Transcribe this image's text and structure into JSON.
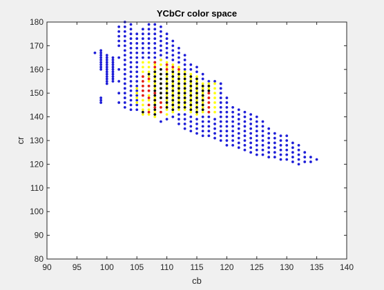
{
  "chart_data": {
    "type": "scatter",
    "title": "YCbCr color space",
    "xlabel": "cb",
    "ylabel": "cr",
    "xlim": [
      90,
      140
    ],
    "ylim": [
      80,
      180
    ],
    "xticks": [
      90,
      95,
      100,
      105,
      110,
      115,
      120,
      125,
      130,
      135,
      140
    ],
    "yticks": [
      80,
      90,
      100,
      110,
      120,
      130,
      140,
      150,
      160,
      170,
      180
    ],
    "grid": false,
    "legend": "none",
    "colors": {
      "background": "#f0f0f0",
      "axes_face": "#ffffff",
      "axes_edge": "#262626",
      "blue": "#1f1fd8",
      "yellow": "#ffff14",
      "red": "#e31a1c",
      "black": "#111111"
    },
    "series": [
      {
        "color": "blue",
        "columns": [
          {
            "x": 98,
            "y": [
              167
            ]
          },
          {
            "x": 99,
            "y": [
              146,
              147,
              148,
              160,
              161,
              162,
              163,
              164,
              165,
              166,
              167,
              168
            ]
          },
          {
            "x": 100,
            "y": [
              154,
              155,
              156,
              157,
              158,
              159,
              160,
              161,
              162,
              163,
              164,
              165,
              166
            ]
          },
          {
            "x": 101,
            "y": [
              155,
              156,
              157,
              158,
              159,
              160,
              161,
              162,
              163,
              164,
              165
            ]
          },
          {
            "x": 102,
            "y": [
              146,
              150,
              155,
              160,
              165,
              170,
              172,
              174,
              176,
              178
            ]
          },
          {
            "x": 103,
            "y": [
              144,
              146,
              148,
              150,
              152,
              154,
              156,
              158,
              160,
              162,
              164,
              166,
              168,
              170,
              172,
              174,
              176,
              178,
              180
            ]
          },
          {
            "x": 104,
            "y": [
              143,
              145,
              147,
              149,
              151,
              153,
              155,
              157,
              159,
              161,
              163,
              165,
              167,
              169,
              171,
              173,
              175,
              177,
              179
            ]
          },
          {
            "x": 105,
            "y": [
              143,
              145,
              147,
              149,
              151,
              153,
              155,
              157,
              159,
              161,
              163,
              165,
              167,
              169,
              171,
              173,
              175
            ]
          },
          {
            "x": 106,
            "y": [
              165,
              167,
              169,
              171,
              173,
              175,
              177
            ]
          },
          {
            "x": 107,
            "y": [
              165,
              167,
              169,
              171,
              173,
              175,
              177,
              179
            ]
          },
          {
            "x": 108,
            "y": [
              163,
              165,
              167,
              169,
              171,
              173,
              175,
              177,
              179
            ]
          },
          {
            "x": 109,
            "y": [
              138,
              164,
              166,
              168,
              170,
              172,
              174,
              176,
              178
            ]
          },
          {
            "x": 110,
            "y": [
              139,
              165,
              167,
              169,
              171,
              173,
              175
            ]
          },
          {
            "x": 111,
            "y": [
              140,
              164,
              166,
              168,
              170,
              172
            ]
          },
          {
            "x": 112,
            "y": [
              137,
              139,
              141,
              163,
              165,
              167,
              169
            ]
          },
          {
            "x": 113,
            "y": [
              135,
              137,
              139,
              141,
              160,
              162,
              164,
              166
            ]
          },
          {
            "x": 114,
            "y": [
              134,
              136,
              138,
              140,
              160,
              162
            ]
          },
          {
            "x": 115,
            "y": [
              133,
              135,
              137,
              139,
              159,
              161
            ]
          },
          {
            "x": 116,
            "y": [
              132,
              134,
              136,
              138,
              140,
              156,
              158
            ]
          },
          {
            "x": 117,
            "y": [
              132,
              134,
              136,
              138,
              140,
              155
            ]
          },
          {
            "x": 118,
            "y": [
              131,
              133,
              135,
              137,
              139,
              155
            ]
          },
          {
            "x": 119,
            "y": [
              130,
              132,
              134,
              136,
              138,
              140,
              142,
              144,
              146,
              148,
              150,
              152,
              154
            ]
          },
          {
            "x": 120,
            "y": [
              128,
              130,
              132,
              134,
              136,
              138,
              140,
              142,
              144,
              146,
              148
            ]
          },
          {
            "x": 121,
            "y": [
              128,
              130,
              132,
              134,
              136,
              138,
              140,
              142,
              144
            ]
          },
          {
            "x": 122,
            "y": [
              127,
              129,
              131,
              133,
              135,
              137,
              139,
              141,
              143
            ]
          },
          {
            "x": 123,
            "y": [
              126,
              128,
              130,
              132,
              134,
              136,
              138,
              140,
              142
            ]
          },
          {
            "x": 124,
            "y": [
              125,
              127,
              129,
              131,
              133,
              135,
              137,
              139,
              141
            ]
          },
          {
            "x": 125,
            "y": [
              124,
              126,
              128,
              130,
              132,
              134,
              136,
              138,
              140
            ]
          },
          {
            "x": 126,
            "y": [
              124,
              126,
              128,
              130,
              132,
              134,
              136,
              138
            ]
          },
          {
            "x": 127,
            "y": [
              123,
              125,
              127,
              129,
              131,
              133,
              135
            ]
          },
          {
            "x": 128,
            "y": [
              123,
              125,
              127,
              129,
              131,
              133
            ]
          },
          {
            "x": 129,
            "y": [
              122,
              124,
              126,
              128,
              130,
              132
            ]
          },
          {
            "x": 130,
            "y": [
              122,
              124,
              126,
              128,
              130,
              132
            ]
          },
          {
            "x": 131,
            "y": [
              121,
              123,
              125,
              127,
              129
            ]
          },
          {
            "x": 132,
            "y": [
              120,
              122,
              124,
              126,
              128
            ]
          },
          {
            "x": 133,
            "y": [
              121,
              123,
              125
            ]
          },
          {
            "x": 134,
            "y": [
              121,
              123
            ]
          },
          {
            "x": 135,
            "y": [
              122
            ]
          }
        ]
      },
      {
        "color": "yellow",
        "columns": [
          {
            "x": 105,
            "y": [
              146,
              148,
              150,
              152
            ]
          },
          {
            "x": 106,
            "y": [
              141,
              143,
              145,
              147,
              149,
              151,
              153,
              155,
              157,
              159,
              161,
              163
            ]
          },
          {
            "x": 107,
            "y": [
              141,
              143,
              145,
              147,
              149,
              151,
              153,
              155,
              157,
              159,
              161,
              163
            ]
          },
          {
            "x": 108,
            "y": [
              140,
              142,
              144,
              146,
              148,
              150,
              152,
              154,
              156,
              158,
              160,
              162
            ]
          },
          {
            "x": 109,
            "y": [
              142,
              144,
              146,
              148,
              150,
              152,
              154,
              156,
              158,
              160,
              162,
              164
            ]
          },
          {
            "x": 110,
            "y": [
              141,
              143,
              145,
              147,
              149,
              151,
              153,
              155,
              157,
              159,
              161,
              163
            ]
          },
          {
            "x": 111,
            "y": [
              142,
              144,
              146,
              148,
              150,
              152,
              154,
              156,
              158,
              160,
              162
            ]
          },
          {
            "x": 112,
            "y": [
              143,
              145,
              147,
              149,
              151,
              153,
              155,
              157,
              159,
              161
            ]
          },
          {
            "x": 113,
            "y": [
              143,
              145,
              147,
              149,
              151,
              153,
              155,
              157,
              159
            ]
          },
          {
            "x": 114,
            "y": [
              142,
              144,
              146,
              148,
              150,
              152,
              154,
              156,
              158
            ]
          },
          {
            "x": 115,
            "y": [
              141,
              143,
              145,
              147,
              149,
              151,
              153,
              155,
              157
            ]
          },
          {
            "x": 116,
            "y": [
              142,
              144,
              146,
              148,
              150,
              152,
              154
            ]
          },
          {
            "x": 117,
            "y": [
              142,
              144,
              146,
              148,
              150,
              152,
              154
            ]
          },
          {
            "x": 118,
            "y": [
              142,
              144,
              146,
              148,
              150,
              152,
              154
            ]
          }
        ]
      },
      {
        "color": "red",
        "columns": [
          {
            "x": 106,
            "y": [
              149,
              151,
              153,
              155,
              157
            ]
          },
          {
            "x": 107,
            "y": [
              142,
              145,
              148,
              151,
              153,
              156
            ]
          },
          {
            "x": 108,
            "y": [
              144,
              147,
              150,
              161,
              163
            ]
          },
          {
            "x": 109,
            "y": [
              142,
              144,
              146
            ]
          },
          {
            "x": 110,
            "y": [
              160,
              162
            ]
          },
          {
            "x": 111,
            "y": [
              161
            ]
          },
          {
            "x": 112,
            "y": [
              160
            ]
          },
          {
            "x": 117,
            "y": [
              142,
              144,
              146,
              148,
              150
            ]
          }
        ]
      },
      {
        "color": "black",
        "columns": [
          {
            "x": 106,
            "y": [
              142
            ]
          },
          {
            "x": 107,
            "y": [
              158
            ]
          },
          {
            "x": 108,
            "y": [
              141,
              143,
              145,
              147,
              149,
              151,
              153,
              155,
              157,
              159
            ]
          },
          {
            "x": 109,
            "y": [
              148,
              150,
              152,
              154,
              156,
              158,
              160
            ]
          },
          {
            "x": 110,
            "y": [
              144,
              146,
              148,
              150,
              152,
              154,
              156,
              158
            ]
          },
          {
            "x": 111,
            "y": [
              143,
              145,
              147,
              149,
              151,
              153,
              155,
              157,
              159
            ]
          },
          {
            "x": 112,
            "y": [
              144,
              146,
              148,
              150,
              152,
              154,
              156,
              158
            ]
          },
          {
            "x": 113,
            "y": [
              144,
              146,
              148,
              150,
              152,
              154,
              156,
              158
            ]
          },
          {
            "x": 114,
            "y": [
              143,
              145,
              147,
              149,
              151,
              153,
              155,
              157
            ]
          },
          {
            "x": 115,
            "y": [
              142,
              144,
              146,
              148,
              150,
              152,
              154,
              156
            ]
          },
          {
            "x": 116,
            "y": [
              143,
              145,
              147,
              149,
              151,
              153
            ]
          },
          {
            "x": 117,
            "y": [
              151,
              153
            ]
          }
        ]
      }
    ]
  }
}
